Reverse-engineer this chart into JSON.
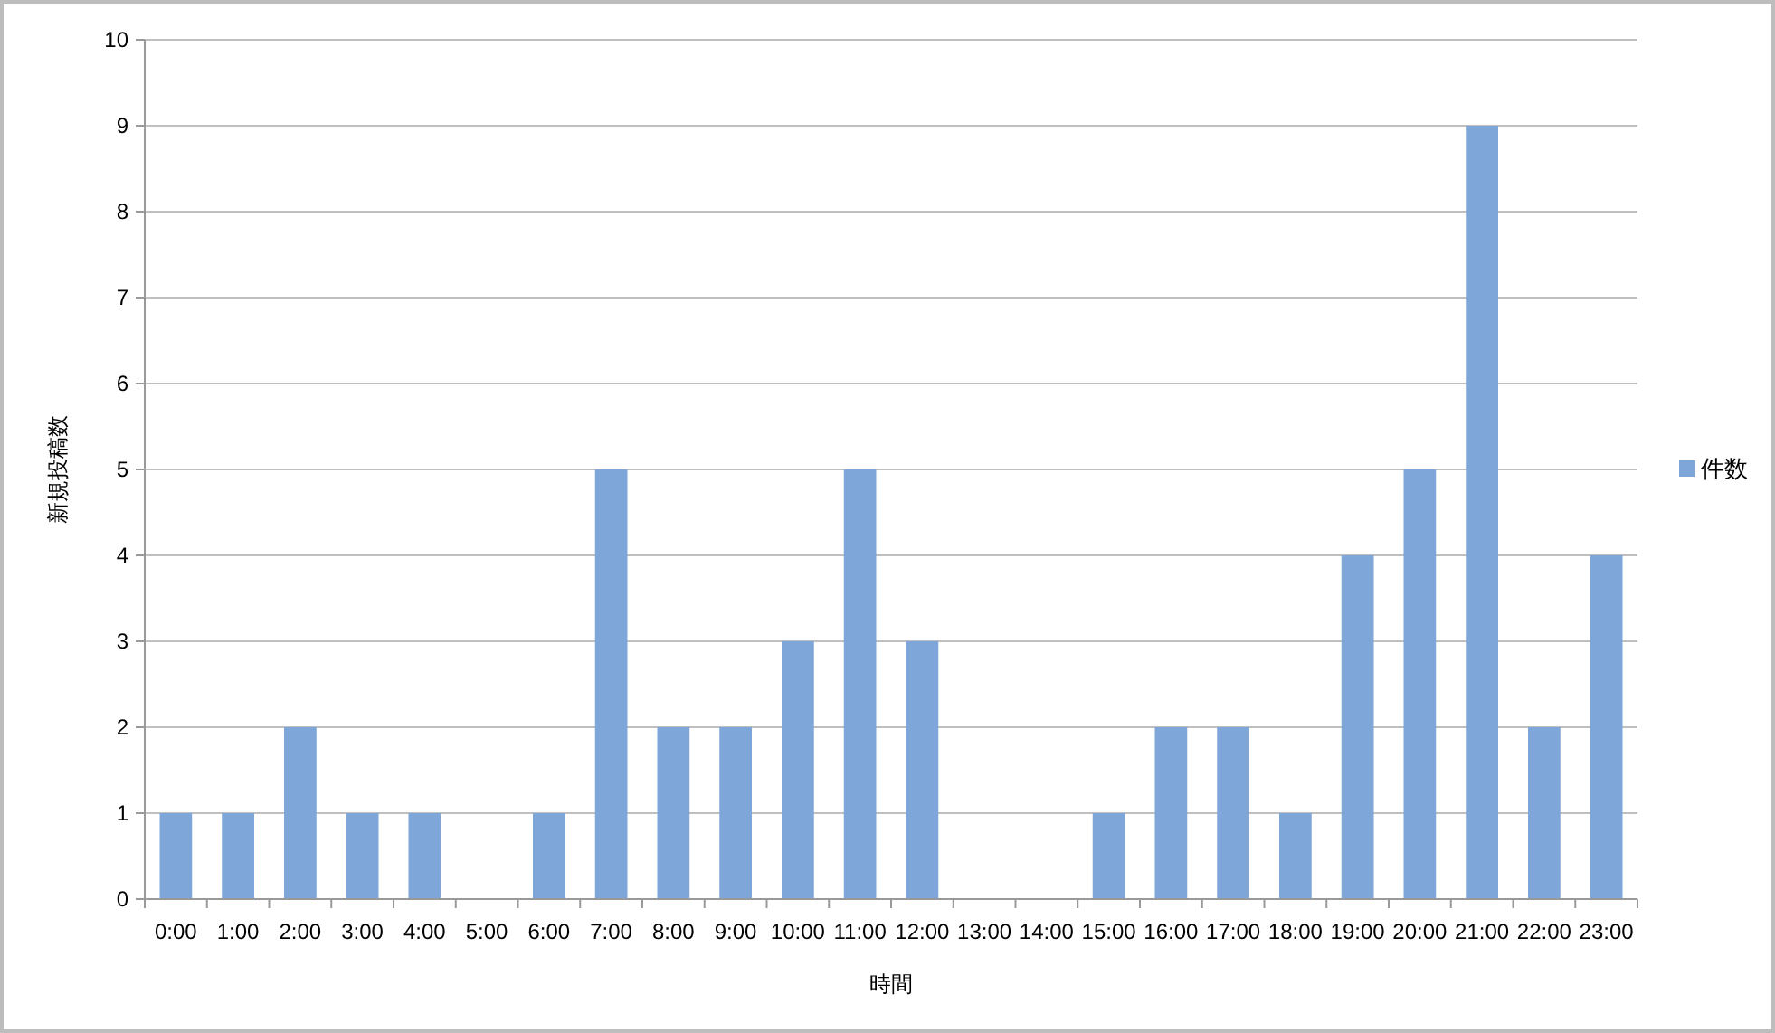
{
  "chart_data": {
    "type": "bar",
    "xlabel": "時間",
    "ylabel": "新規投稿数",
    "categories": [
      "0:00",
      "1:00",
      "2:00",
      "3:00",
      "4:00",
      "5:00",
      "6:00",
      "7:00",
      "8:00",
      "9:00",
      "10:00",
      "11:00",
      "12:00",
      "13:00",
      "14:00",
      "15:00",
      "16:00",
      "17:00",
      "18:00",
      "19:00",
      "20:00",
      "21:00",
      "22:00",
      "23:00"
    ],
    "series": [
      {
        "name": "件数",
        "color": "#7ea6d8",
        "values": [
          1,
          1,
          2,
          1,
          1,
          0,
          1,
          5,
          2,
          2,
          3,
          5,
          3,
          0,
          0,
          1,
          2,
          2,
          1,
          4,
          5,
          9,
          2,
          4
        ]
      }
    ],
    "ylim": [
      0,
      10
    ],
    "yticks": [
      0,
      1,
      2,
      3,
      4,
      5,
      6,
      7,
      8,
      9,
      10
    ],
    "grid": "y",
    "legend": "right"
  }
}
